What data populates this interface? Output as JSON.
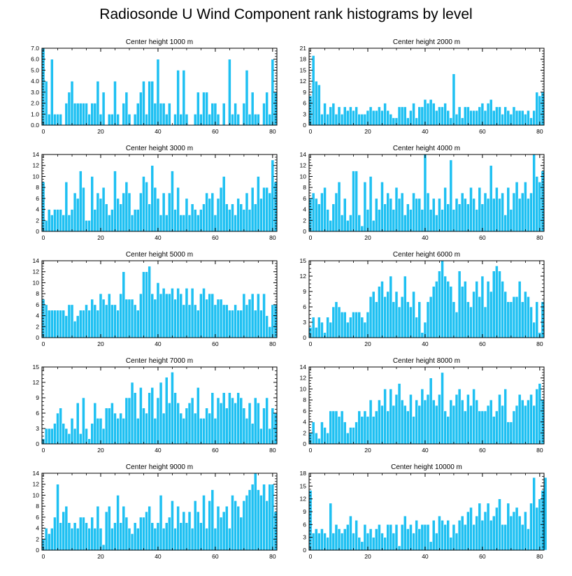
{
  "title": "Radiosonde U Wind Component rank histograms by level",
  "bar_color": "#1ec0f2",
  "chart_data": [
    {
      "type": "bar",
      "title": "Center height 1000 m",
      "ylim": [
        0,
        7
      ],
      "yticks": [
        "0.0",
        "1.0",
        "2.0",
        "3.0",
        "4.0",
        "5.0",
        "6.0",
        "7.0"
      ],
      "ytick_values": [
        0,
        1,
        2,
        3,
        4,
        5,
        6,
        7
      ],
      "xlim": [
        -0.5,
        81.5
      ],
      "xticks": [
        "0",
        "20",
        "40",
        "60",
        "80"
      ],
      "xtick_values": [
        0,
        20,
        40,
        60,
        80
      ],
      "values": [
        7,
        4,
        1,
        6,
        1,
        1,
        1,
        0,
        2,
        3,
        4,
        2,
        2,
        2,
        2,
        2,
        1,
        2,
        2,
        4,
        1,
        3,
        0,
        1,
        1,
        4,
        1,
        0,
        2,
        3,
        1,
        0,
        1,
        2,
        3,
        4,
        1,
        4,
        4,
        2,
        6,
        2,
        2,
        1,
        2,
        0,
        1,
        5,
        1,
        5,
        1,
        0,
        0,
        1,
        3,
        1,
        3,
        3,
        1,
        2,
        2,
        1,
        0,
        2,
        0,
        6,
        1,
        2,
        1,
        0,
        2,
        5,
        1,
        3,
        1,
        1,
        0,
        2,
        3,
        1,
        6,
        3
      ]
    },
    {
      "type": "bar",
      "title": "Center height 2000 m",
      "ylim": [
        0,
        21
      ],
      "yticks": [
        "0",
        "3",
        "6",
        "9",
        "12",
        "15",
        "18",
        "21"
      ],
      "ytick_values": [
        0,
        3,
        6,
        9,
        12,
        15,
        18,
        21
      ],
      "xlim": [
        -0.5,
        81.5
      ],
      "xticks": [
        "0",
        "20",
        "40",
        "60",
        "80"
      ],
      "xtick_values": [
        0,
        20,
        40,
        60,
        80
      ],
      "values": [
        8,
        19,
        12,
        11,
        3,
        6,
        3,
        5,
        6,
        3,
        5,
        3,
        5,
        4,
        5,
        4,
        5,
        3,
        3,
        3,
        4,
        5,
        4,
        4,
        5,
        4,
        6,
        4,
        3,
        2,
        2,
        5,
        5,
        5,
        2,
        4,
        6,
        2,
        5,
        5,
        7,
        6,
        7,
        6,
        4,
        5,
        5,
        6,
        4,
        2,
        14,
        3,
        5,
        2,
        5,
        5,
        4,
        4,
        4,
        5,
        6,
        4,
        6,
        7,
        4,
        5,
        5,
        3,
        5,
        4,
        3,
        5,
        4,
        4,
        4,
        3,
        4,
        2,
        4,
        9,
        8,
        9
      ]
    },
    {
      "type": "bar",
      "title": "Center height 3000 m",
      "ylim": [
        0,
        14
      ],
      "yticks": [
        "0",
        "2",
        "4",
        "6",
        "8",
        "10",
        "12",
        "14"
      ],
      "ytick_values": [
        0,
        2,
        4,
        6,
        8,
        10,
        12,
        14
      ],
      "xlim": [
        -0.5,
        81.5
      ],
      "xticks": [
        "0",
        "20",
        "40",
        "60",
        "80"
      ],
      "xtick_values": [
        0,
        20,
        40,
        60,
        80
      ],
      "values": [
        9,
        2,
        4,
        3,
        4,
        4,
        4,
        3,
        9,
        3,
        4,
        7,
        6,
        11,
        8,
        2,
        2,
        10,
        4,
        7,
        6,
        8,
        5,
        3,
        4,
        11,
        6,
        5,
        7,
        9,
        7,
        3,
        4,
        4,
        7,
        10,
        9,
        5,
        12,
        8,
        6,
        3,
        7,
        3,
        7,
        11,
        4,
        8,
        3,
        3,
        6,
        3,
        5,
        4,
        3,
        4,
        5,
        7,
        6,
        7,
        3,
        6,
        8,
        10,
        5,
        4,
        5,
        3,
        6,
        5,
        4,
        7,
        4,
        8,
        5,
        10,
        6,
        8,
        8,
        7,
        13,
        9
      ]
    },
    {
      "type": "bar",
      "title": "Center height 4000 m",
      "ylim": [
        0,
        14
      ],
      "yticks": [
        "0",
        "2",
        "4",
        "6",
        "8",
        "10",
        "12",
        "14"
      ],
      "ytick_values": [
        0,
        2,
        4,
        6,
        8,
        10,
        12,
        14
      ],
      "xlim": [
        -0.5,
        81.5
      ],
      "xticks": [
        "0",
        "20",
        "40",
        "60",
        "80"
      ],
      "xtick_values": [
        0,
        20,
        40,
        60,
        80
      ],
      "values": [
        6,
        7,
        6,
        5,
        7,
        8,
        4,
        2,
        5,
        7,
        9,
        3,
        6,
        2,
        3,
        11,
        11,
        3,
        1,
        9,
        4,
        10,
        2,
        6,
        4,
        9,
        5,
        7,
        6,
        4,
        8,
        6,
        7,
        3,
        5,
        4,
        7,
        6,
        6,
        4,
        14,
        7,
        4,
        6,
        3,
        6,
        4,
        8,
        5,
        13,
        4,
        6,
        5,
        7,
        6,
        5,
        8,
        6,
        4,
        8,
        5,
        7,
        6,
        12,
        6,
        8,
        6,
        7,
        3,
        8,
        4,
        7,
        9,
        6,
        7,
        9,
        6,
        7,
        14,
        10,
        9,
        11
      ]
    },
    {
      "type": "bar",
      "title": "Center height 5000 m",
      "ylim": [
        0,
        14
      ],
      "yticks": [
        "0",
        "2",
        "4",
        "6",
        "8",
        "10",
        "12",
        "14"
      ],
      "ytick_values": [
        0,
        2,
        4,
        6,
        8,
        10,
        12,
        14
      ],
      "xlim": [
        -0.5,
        81.5
      ],
      "xticks": [
        "0",
        "20",
        "40",
        "60",
        "80"
      ],
      "xtick_values": [
        0,
        20,
        40,
        60,
        80
      ],
      "values": [
        7,
        6,
        5,
        5,
        5,
        5,
        5,
        5,
        4,
        6,
        6,
        3,
        4,
        5,
        5,
        6,
        5,
        7,
        6,
        5,
        8,
        7,
        6,
        8,
        6,
        6,
        5,
        8,
        12,
        7,
        7,
        7,
        6,
        5,
        8,
        12,
        12,
        13,
        8,
        7,
        10,
        8,
        9,
        8,
        8,
        9,
        7,
        9,
        8,
        6,
        9,
        6,
        9,
        6,
        5,
        8,
        9,
        7,
        8,
        8,
        6,
        7,
        7,
        6,
        6,
        5,
        5,
        6,
        5,
        5,
        8,
        6,
        7,
        8,
        5,
        8,
        5,
        8,
        4,
        2,
        6,
        6
      ]
    },
    {
      "type": "bar",
      "title": "Center height 6000 m",
      "ylim": [
        0,
        15
      ],
      "yticks": [
        "0",
        "3",
        "6",
        "9",
        "12",
        "15"
      ],
      "ytick_values": [
        0,
        3,
        6,
        9,
        12,
        15
      ],
      "xlim": [
        -0.5,
        81.5
      ],
      "xticks": [
        "0",
        "20",
        "40",
        "60",
        "80"
      ],
      "xtick_values": [
        0,
        20,
        40,
        60,
        80
      ],
      "values": [
        2,
        4,
        2,
        4,
        3,
        1,
        4,
        3,
        6,
        7,
        6,
        5,
        5,
        3,
        4,
        5,
        5,
        5,
        4,
        3,
        5,
        8,
        9,
        7,
        10,
        11,
        8,
        9,
        12,
        7,
        9,
        6,
        8,
        12,
        7,
        6,
        9,
        4,
        7,
        1,
        3,
        7,
        8,
        10,
        11,
        13,
        15,
        12,
        11,
        10,
        7,
        5,
        13,
        10,
        11,
        7,
        6,
        9,
        11,
        8,
        12,
        6,
        11,
        9,
        13,
        14,
        13,
        11,
        9,
        7,
        7,
        8,
        8,
        11,
        7,
        9,
        8,
        6,
        3,
        7,
        1,
        7
      ]
    },
    {
      "type": "bar",
      "title": "Center height 7000 m",
      "ylim": [
        0,
        15
      ],
      "yticks": [
        "0",
        "3",
        "6",
        "9",
        "12",
        "15"
      ],
      "ytick_values": [
        0,
        3,
        6,
        9,
        12,
        15
      ],
      "xlim": [
        -0.5,
        81.5
      ],
      "xticks": [
        "0",
        "20",
        "40",
        "60",
        "80"
      ],
      "xtick_values": [
        0,
        20,
        40,
        60,
        80
      ],
      "values": [
        1,
        3,
        3,
        3,
        4,
        6,
        7,
        4,
        3,
        2,
        5,
        3,
        8,
        2,
        9,
        3,
        1,
        4,
        8,
        5,
        5,
        3,
        7,
        7,
        8,
        6,
        5,
        6,
        5,
        9,
        9,
        12,
        10,
        5,
        11,
        7,
        6,
        10,
        11,
        5,
        9,
        12,
        6,
        13,
        8,
        14,
        10,
        8,
        6,
        5,
        7,
        8,
        9,
        6,
        11,
        5,
        5,
        7,
        6,
        10,
        5,
        9,
        8,
        10,
        7,
        10,
        9,
        8,
        10,
        9,
        7,
        5,
        8,
        4,
        9,
        8,
        3,
        7,
        9,
        3,
        7,
        6
      ]
    },
    {
      "type": "bar",
      "title": "Center height 8000 m",
      "ylim": [
        0,
        14
      ],
      "yticks": [
        "0",
        "2",
        "4",
        "6",
        "8",
        "10",
        "12",
        "14"
      ],
      "ytick_values": [
        0,
        2,
        4,
        6,
        8,
        10,
        12,
        14
      ],
      "xlim": [
        -0.5,
        81.5
      ],
      "xticks": [
        "0",
        "20",
        "40",
        "60",
        "80"
      ],
      "xtick_values": [
        0,
        20,
        40,
        60,
        80
      ],
      "values": [
        2,
        4,
        2,
        1,
        4,
        3,
        2,
        6,
        6,
        6,
        5,
        6,
        4,
        2,
        3,
        3,
        4,
        6,
        5,
        6,
        5,
        8,
        5,
        6,
        8,
        7,
        10,
        6,
        10,
        7,
        9,
        11,
        8,
        7,
        6,
        9,
        5,
        8,
        7,
        10,
        8,
        9,
        12,
        8,
        7,
        9,
        13,
        6,
        5,
        8,
        7,
        9,
        10,
        8,
        6,
        9,
        7,
        10,
        8,
        6,
        6,
        6,
        7,
        8,
        5,
        6,
        9,
        7,
        10,
        4,
        4,
        6,
        7,
        9,
        8,
        7,
        8,
        9,
        7,
        10,
        11,
        8
      ]
    },
    {
      "type": "bar",
      "title": "Center height 9000 m",
      "ylim": [
        0,
        14
      ],
      "yticks": [
        "0",
        "2",
        "4",
        "6",
        "8",
        "10",
        "12",
        "14"
      ],
      "ytick_values": [
        0,
        2,
        4,
        6,
        8,
        10,
        12,
        14
      ],
      "xlim": [
        -0.5,
        81.5
      ],
      "xticks": [
        "0",
        "20",
        "40",
        "60",
        "80"
      ],
      "xtick_values": [
        0,
        20,
        40,
        60,
        80
      ],
      "values": [
        2,
        4,
        3,
        4,
        6,
        12,
        5,
        7,
        8,
        5,
        4,
        5,
        4,
        6,
        6,
        5,
        4,
        6,
        4,
        8,
        4,
        1,
        7,
        8,
        4,
        5,
        10,
        5,
        8,
        6,
        4,
        3,
        5,
        4,
        6,
        6,
        7,
        8,
        5,
        4,
        5,
        10,
        4,
        5,
        6,
        9,
        4,
        8,
        5,
        7,
        5,
        7,
        4,
        9,
        7,
        5,
        10,
        4,
        9,
        11,
        4,
        8,
        6,
        7,
        8,
        4,
        10,
        9,
        8,
        6,
        9,
        10,
        11,
        12,
        14,
        11,
        10,
        12,
        9,
        12,
        12,
        7
      ]
    },
    {
      "type": "bar",
      "title": "Center height 10000 m",
      "ylim": [
        0,
        18
      ],
      "yticks": [
        "0",
        "3",
        "6",
        "9",
        "12",
        "15",
        "18"
      ],
      "ytick_values": [
        0,
        3,
        6,
        9,
        12,
        15,
        18
      ],
      "xlim": [
        -0.5,
        81.5
      ],
      "xticks": [
        "0",
        "20",
        "40",
        "60",
        "80"
      ],
      "xtick_values": [
        0,
        20,
        40,
        60,
        80
      ],
      "values": [
        14,
        4,
        5,
        4,
        5,
        4,
        3,
        11,
        4,
        6,
        5,
        4,
        5,
        6,
        8,
        4,
        7,
        3,
        2,
        6,
        4,
        5,
        3,
        5,
        6,
        4,
        3,
        6,
        6,
        4,
        6,
        1,
        6,
        8,
        5,
        6,
        4,
        7,
        5,
        6,
        6,
        6,
        2,
        7,
        4,
        8,
        7,
        6,
        7,
        3,
        6,
        4,
        7,
        8,
        6,
        9,
        10,
        6,
        8,
        11,
        7,
        9,
        11,
        7,
        8,
        10,
        12,
        6,
        6,
        11,
        8,
        9,
        10,
        8,
        6,
        9,
        5,
        11,
        17,
        10,
        12,
        14,
        17
      ]
    }
  ]
}
